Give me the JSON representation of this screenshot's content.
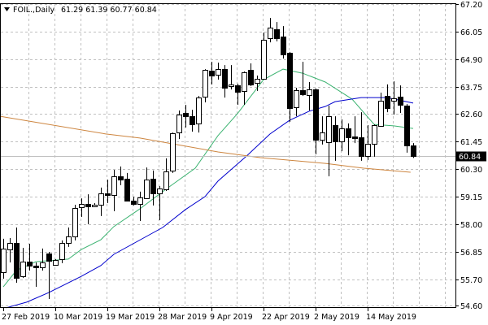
{
  "header": {
    "symbol": "FOIL.,Daily",
    "ohlc": "61.29 61.39 60.77 60.84",
    "icon": "triangle-down-icon"
  },
  "chart_data": {
    "type": "candlestick",
    "title": "FOIL.,Daily",
    "ylim": [
      54.6,
      67.2
    ],
    "y_ticks": [
      "67.20",
      "66.05",
      "64.90",
      "63.75",
      "62.60",
      "61.45",
      "60.30",
      "59.15",
      "58.00",
      "56.85",
      "55.70",
      "54.60"
    ],
    "x_ticks": [
      {
        "label": "27 Feb 2019",
        "bar": 0
      },
      {
        "label": "10 Mar 2019",
        "bar": 8
      },
      {
        "label": "19 Mar 2019",
        "bar": 16
      },
      {
        "label": "28 Mar 2019",
        "bar": 24
      },
      {
        "label": "9 Apr 2019",
        "bar": 32
      },
      {
        "label": "22 Apr 2019",
        "bar": 40
      },
      {
        "label": "2 May 2019",
        "bar": 48
      },
      {
        "label": "14 May 2019",
        "bar": 56
      }
    ],
    "current_price": "60.84",
    "grid": true,
    "colors": {
      "bull_fill": "#ffffff",
      "bear_fill": "#000000",
      "candle_outline": "#000000",
      "grid": "#c0c0c0",
      "ma_fast": "#3cb371",
      "ma_mid": "#0000cd",
      "ma_slow": "#cd853f",
      "price_line": "#c0c0c0",
      "price_tag_bg": "#000000",
      "price_tag_text": "#ffffff"
    },
    "ohlc": [
      [
        55.99,
        57.39,
        55.72,
        56.98
      ],
      [
        56.94,
        57.42,
        56.4,
        57.22
      ],
      [
        57.22,
        57.86,
        55.55,
        55.75
      ],
      [
        55.82,
        57.01,
        55.75,
        56.43
      ],
      [
        56.43,
        57.18,
        56.06,
        56.27
      ],
      [
        56.27,
        56.4,
        55.38,
        56.2
      ],
      [
        56.2,
        56.98,
        56.06,
        56.4
      ],
      [
        56.77,
        56.84,
        54.87,
        56.47
      ],
      [
        56.3,
        56.54,
        56.3,
        56.5
      ],
      [
        56.54,
        57.32,
        56.37,
        57.22
      ],
      [
        57.22,
        57.86,
        57.05,
        57.49
      ],
      [
        57.49,
        58.81,
        57.32,
        58.68
      ],
      [
        58.71,
        59.08,
        58.3,
        58.85
      ],
      [
        58.85,
        59.25,
        58.0,
        58.74
      ],
      [
        58.74,
        58.88,
        58.71,
        58.81
      ],
      [
        58.81,
        59.53,
        58.34,
        59.29
      ],
      [
        59.29,
        59.86,
        58.88,
        59.22
      ],
      [
        59.22,
        60.27,
        58.54,
        60.0
      ],
      [
        60.0,
        60.41,
        59.63,
        59.86
      ],
      [
        59.9,
        60.14,
        58.95,
        58.98
      ],
      [
        58.98,
        59.15,
        58.78,
        58.85
      ],
      [
        58.85,
        59.36,
        58.13,
        59.12
      ],
      [
        59.08,
        60.37,
        59.05,
        59.86
      ],
      [
        59.9,
        60.24,
        58.78,
        59.29
      ],
      [
        59.29,
        59.59,
        58.17,
        59.49
      ],
      [
        59.46,
        60.75,
        59.39,
        60.2
      ],
      [
        60.24,
        61.83,
        60.14,
        61.8
      ],
      [
        61.83,
        62.75,
        61.56,
        62.58
      ],
      [
        62.65,
        62.99,
        62.04,
        62.51
      ],
      [
        62.51,
        62.78,
        61.87,
        62.17
      ],
      [
        62.21,
        63.36,
        61.83,
        63.29
      ],
      [
        63.33,
        64.48,
        63.09,
        64.45
      ],
      [
        64.42,
        64.79,
        63.84,
        64.21
      ],
      [
        64.25,
        64.75,
        64.04,
        64.48
      ],
      [
        64.48,
        64.65,
        63.29,
        63.7
      ],
      [
        63.77,
        64.65,
        63.63,
        63.84
      ],
      [
        63.8,
        63.87,
        62.99,
        63.53
      ],
      [
        63.57,
        64.38,
        62.99,
        64.35
      ],
      [
        64.45,
        64.72,
        63.77,
        63.84
      ],
      [
        63.91,
        64.21,
        63.57,
        64.08
      ],
      [
        64.08,
        66.01,
        64.04,
        65.71
      ],
      [
        65.77,
        66.62,
        65.6,
        66.22
      ],
      [
        66.15,
        66.45,
        65.64,
        65.77
      ],
      [
        65.84,
        66.28,
        64.92,
        65.09
      ],
      [
        65.16,
        65.2,
        62.28,
        62.85
      ],
      [
        62.89,
        63.7,
        62.51,
        63.6
      ],
      [
        63.6,
        64.79,
        63.36,
        63.43
      ],
      [
        63.4,
        63.94,
        62.75,
        63.63
      ],
      [
        63.63,
        63.67,
        60.92,
        61.53
      ],
      [
        61.53,
        62.51,
        61.33,
        61.83
      ],
      [
        61.43,
        62.95,
        60.0,
        62.51
      ],
      [
        62.14,
        62.51,
        60.65,
        61.46
      ],
      [
        61.46,
        62.38,
        61.05,
        62.0
      ],
      [
        62.0,
        62.21,
        60.88,
        61.63
      ],
      [
        61.66,
        62.51,
        61.39,
        61.6
      ],
      [
        61.63,
        62.68,
        60.65,
        60.85
      ],
      [
        60.85,
        62.14,
        60.68,
        61.36
      ],
      [
        61.36,
        62.17,
        60.82,
        62.14
      ],
      [
        62.11,
        63.5,
        62.07,
        63.16
      ],
      [
        63.36,
        63.84,
        62.68,
        62.85
      ],
      [
        63.16,
        63.97,
        62.58,
        63.26
      ],
      [
        63.33,
        63.8,
        62.65,
        62.99
      ],
      [
        62.95,
        63.02,
        60.99,
        61.29
      ],
      [
        61.29,
        61.39,
        60.77,
        60.84
      ]
    ],
    "moving_averages": [
      {
        "color_key": "ma_fast",
        "points": [
          [
            0,
            55.38
          ],
          [
            2,
            56.06
          ],
          [
            5,
            56.43
          ],
          [
            10,
            56.54
          ],
          [
            12,
            56.94
          ],
          [
            15,
            57.35
          ],
          [
            17,
            57.9
          ],
          [
            21,
            58.64
          ],
          [
            25,
            59.46
          ],
          [
            29.5,
            60.34
          ],
          [
            33,
            61.7
          ],
          [
            36,
            62.62
          ],
          [
            40,
            64.04
          ],
          [
            43,
            64.48
          ],
          [
            46,
            64.31
          ],
          [
            49.5,
            63.94
          ],
          [
            53.6,
            63.23
          ],
          [
            57,
            62.17
          ],
          [
            60,
            62.11
          ],
          [
            63,
            62.0
          ]
        ]
      },
      {
        "color_key": "ma_mid",
        "points": [
          [
            0.4,
            54.5
          ],
          [
            3.6,
            54.74
          ],
          [
            7,
            55.14
          ],
          [
            12,
            55.82
          ],
          [
            15,
            56.27
          ],
          [
            17,
            56.74
          ],
          [
            24.5,
            57.86
          ],
          [
            28,
            58.61
          ],
          [
            31,
            59.15
          ],
          [
            33,
            59.8
          ],
          [
            37.4,
            60.85
          ],
          [
            41,
            61.77
          ],
          [
            44,
            62.34
          ],
          [
            47,
            62.72
          ],
          [
            49.5,
            62.92
          ],
          [
            51,
            63.12
          ],
          [
            55,
            63.29
          ],
          [
            59,
            63.29
          ],
          [
            63,
            63.06
          ]
        ]
      },
      {
        "color_key": "ma_slow",
        "points": [
          [
            -0.5,
            62.51
          ],
          [
            15.75,
            61.77
          ],
          [
            21,
            61.6
          ],
          [
            26,
            61.36
          ],
          [
            33,
            61.02
          ],
          [
            39.5,
            60.78
          ],
          [
            49.5,
            60.54
          ],
          [
            55.4,
            60.34
          ],
          [
            62.6,
            60.17
          ]
        ]
      }
    ]
  }
}
